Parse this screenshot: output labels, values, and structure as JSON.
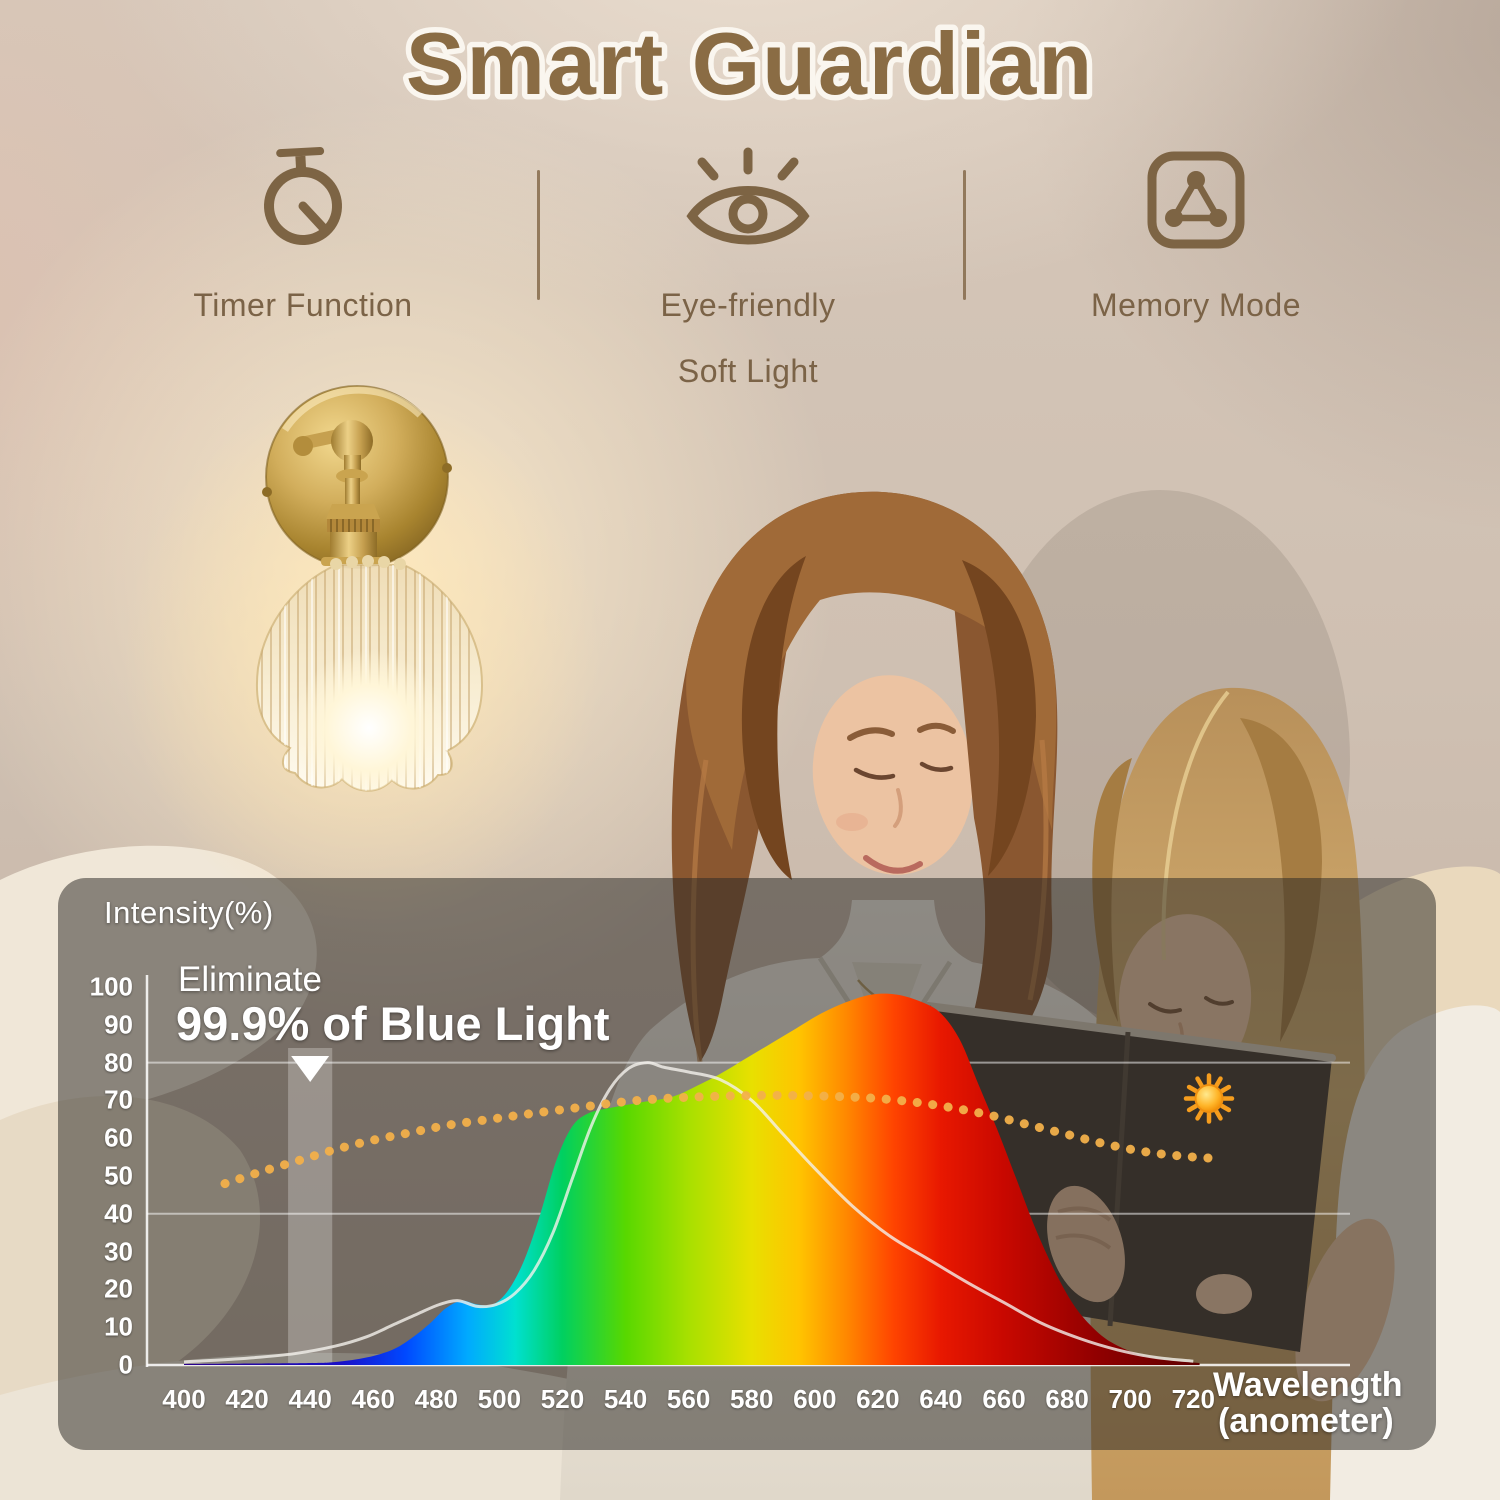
{
  "header": {
    "title": "Smart Guardian",
    "title_color": "#8a6c44",
    "title_outline": "#faf6ef"
  },
  "features": [
    {
      "icon": "timer-icon",
      "label": "Timer Function"
    },
    {
      "icon": "eye-icon",
      "label_line1": "Eye-friendly",
      "label_line2": "Soft Light"
    },
    {
      "icon": "memory-mode-icon",
      "label": "Memory Mode"
    }
  ],
  "feature_style": {
    "icon_color": "#7d6444",
    "text_color": "#7b6347",
    "divider_color": "#7a5d3c"
  },
  "scene": {
    "wall_lamp": "brass wall sconce with fluted glass flower shade, glowing warm white",
    "photo": "mother and daughter reading a book together on a bed with cream pillows"
  },
  "chart_data": {
    "type": "area",
    "title": "",
    "panel_overlay_color": "rgba(45,42,38,0.52)",
    "text_color": "#ffffff",
    "y_axis": {
      "label": "Intensity(%)",
      "ticks": [
        100,
        90,
        80,
        70,
        60,
        50,
        40,
        30,
        20,
        10,
        0
      ],
      "range": [
        0,
        100
      ]
    },
    "x_axis": {
      "label_line1": "Wavelength",
      "label_line2": "(anometer)",
      "ticks": [
        400,
        420,
        440,
        460,
        480,
        500,
        520,
        540,
        560,
        580,
        600,
        620,
        640,
        660,
        680,
        700,
        720
      ],
      "range": [
        390,
        730
      ]
    },
    "gridlines_y": [
      0,
      40,
      80
    ],
    "annotations": {
      "eliminate_line1": "Eliminate",
      "eliminate_line2": "99.9% of Blue Light",
      "blocked_band_nm": [
        433,
        447
      ],
      "band_marker": "white-down-triangle",
      "sun_icon_at": [
        725,
        70.5
      ]
    },
    "series": [
      {
        "name": "lamp-spectrum-blue-light-removed",
        "style": "area-spectral-gradient",
        "points": [
          [
            400,
            0.3
          ],
          [
            438,
            0.5
          ],
          [
            448,
            0.8
          ],
          [
            458,
            2
          ],
          [
            466,
            4
          ],
          [
            472,
            7
          ],
          [
            478,
            11
          ],
          [
            483,
            15
          ],
          [
            488,
            17
          ],
          [
            493,
            16
          ],
          [
            498,
            16
          ],
          [
            503,
            20
          ],
          [
            508,
            28
          ],
          [
            513,
            40
          ],
          [
            518,
            54
          ],
          [
            523,
            63
          ],
          [
            528,
            66.5
          ],
          [
            535,
            68
          ],
          [
            545,
            69.5
          ],
          [
            555,
            71
          ],
          [
            563,
            74
          ],
          [
            570,
            77
          ],
          [
            578,
            81
          ],
          [
            586,
            85
          ],
          [
            594,
            89
          ],
          [
            602,
            93
          ],
          [
            610,
            96
          ],
          [
            618,
            98
          ],
          [
            626,
            98
          ],
          [
            634,
            96
          ],
          [
            640,
            93
          ],
          [
            646,
            86
          ],
          [
            652,
            74
          ],
          [
            658,
            62
          ],
          [
            664,
            49
          ],
          [
            670,
            36
          ],
          [
            676,
            25
          ],
          [
            682,
            16
          ],
          [
            688,
            10
          ],
          [
            694,
            6
          ],
          [
            702,
            3
          ],
          [
            710,
            1.5
          ],
          [
            722,
            0.5
          ]
        ]
      },
      {
        "name": "reference-spectrum-with-blue-light",
        "style": "thin-line",
        "color": "#f4f1ec",
        "points": [
          [
            400,
            0.8
          ],
          [
            420,
            1.8
          ],
          [
            435,
            3
          ],
          [
            448,
            5
          ],
          [
            458,
            7.5
          ],
          [
            466,
            10.5
          ],
          [
            474,
            13.5
          ],
          [
            481,
            16
          ],
          [
            487,
            17
          ],
          [
            493,
            15.5
          ],
          [
            499,
            16
          ],
          [
            505,
            19
          ],
          [
            511,
            25
          ],
          [
            517,
            35
          ],
          [
            523,
            49
          ],
          [
            529,
            63
          ],
          [
            535,
            73
          ],
          [
            541,
            78.5
          ],
          [
            547,
            80
          ],
          [
            552,
            78.8
          ],
          [
            560,
            77.5
          ],
          [
            570,
            75.5
          ],
          [
            580,
            70
          ],
          [
            590,
            61
          ],
          [
            600,
            52
          ],
          [
            612,
            42
          ],
          [
            624,
            34
          ],
          [
            636,
            28
          ],
          [
            648,
            22
          ],
          [
            660,
            16.5
          ],
          [
            672,
            11
          ],
          [
            684,
            7
          ],
          [
            696,
            4
          ],
          [
            708,
            2
          ],
          [
            720,
            1
          ]
        ]
      },
      {
        "name": "natural-sunlight-reference",
        "style": "dotted",
        "color": "#f2b04a",
        "points": [
          [
            413,
            48
          ],
          [
            424,
            51
          ],
          [
            436,
            54
          ],
          [
            448,
            57
          ],
          [
            460,
            59.5
          ],
          [
            472,
            61.5
          ],
          [
            484,
            63.5
          ],
          [
            497,
            65
          ],
          [
            510,
            66.5
          ],
          [
            524,
            68
          ],
          [
            538,
            69.5
          ],
          [
            552,
            70.5
          ],
          [
            566,
            71
          ],
          [
            580,
            71.3
          ],
          [
            594,
            71.3
          ],
          [
            608,
            71
          ],
          [
            620,
            70.5
          ],
          [
            632,
            69.5
          ],
          [
            644,
            68
          ],
          [
            656,
            66
          ],
          [
            668,
            63.5
          ],
          [
            680,
            61
          ],
          [
            692,
            58.5
          ],
          [
            704,
            56.5
          ],
          [
            716,
            55.3
          ],
          [
            728,
            54.6
          ]
        ]
      }
    ],
    "spectral_gradient": [
      [
        400,
        "#2a008a"
      ],
      [
        450,
        "#1a10c8"
      ],
      [
        470,
        "#0048ff"
      ],
      [
        490,
        "#00aaff"
      ],
      [
        505,
        "#00e0d0"
      ],
      [
        520,
        "#00d060"
      ],
      [
        540,
        "#58d800"
      ],
      [
        560,
        "#a8e000"
      ],
      [
        580,
        "#e8e000"
      ],
      [
        595,
        "#ffc400"
      ],
      [
        610,
        "#ff8800"
      ],
      [
        625,
        "#ff4400"
      ],
      [
        640,
        "#e81800"
      ],
      [
        660,
        "#c80800"
      ],
      [
        690,
        "#900000"
      ],
      [
        720,
        "#600000"
      ]
    ]
  }
}
